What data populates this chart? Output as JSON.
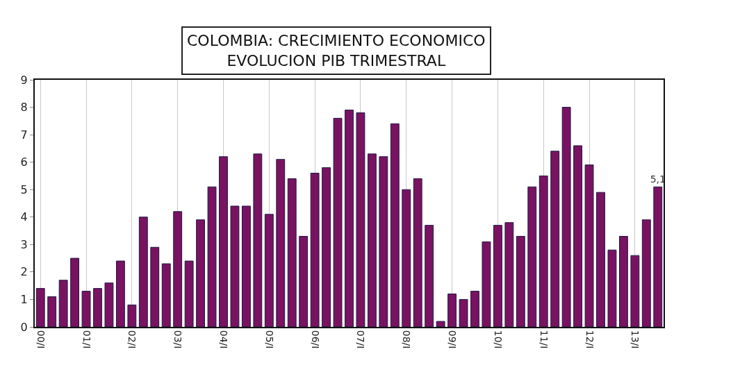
{
  "chart_data": {
    "type": "bar",
    "title": "COLOMBIA: CRECIMIENTO ECONOMICO\nEVOLUCION PIB TRIMESTRAL",
    "categories": [
      "00/I",
      null,
      null,
      null,
      "01/I",
      null,
      null,
      null,
      "02/I",
      null,
      null,
      null,
      "03/I",
      null,
      null,
      null,
      "04/I",
      null,
      null,
      null,
      "05/I",
      null,
      null,
      null,
      "06/I",
      null,
      null,
      null,
      "07/I",
      null,
      null,
      null,
      "08/I",
      null,
      null,
      null,
      "09/I",
      null,
      null,
      null,
      "10/I",
      null,
      null,
      null,
      "11/I",
      null,
      null,
      null,
      "12/I",
      null,
      null,
      null,
      "13/I",
      null,
      null
    ],
    "values": [
      1.4,
      1.1,
      1.7,
      2.5,
      1.3,
      1.4,
      1.6,
      2.4,
      0.8,
      4.0,
      2.9,
      2.3,
      4.2,
      2.4,
      3.9,
      5.1,
      6.2,
      4.4,
      4.4,
      6.3,
      4.1,
      6.1,
      5.4,
      3.3,
      5.6,
      5.8,
      7.6,
      7.9,
      7.8,
      6.3,
      6.2,
      7.4,
      5.0,
      5.4,
      3.7,
      0.2,
      1.2,
      1.0,
      1.3,
      3.1,
      3.7,
      3.8,
      3.3,
      5.1,
      5.5,
      6.4,
      8.0,
      6.6,
      5.9,
      4.9,
      2.8,
      3.3,
      2.6,
      3.9,
      5.1
    ],
    "value_labels": [
      null,
      null,
      null,
      null,
      null,
      null,
      null,
      null,
      null,
      null,
      null,
      null,
      null,
      null,
      null,
      null,
      null,
      null,
      null,
      null,
      null,
      null,
      null,
      null,
      null,
      null,
      null,
      null,
      null,
      null,
      null,
      null,
      null,
      null,
      null,
      null,
      null,
      null,
      null,
      null,
      null,
      null,
      null,
      null,
      null,
      null,
      null,
      null,
      null,
      null,
      null,
      null,
      null,
      null,
      "5,1"
    ],
    "color": "#7a1262",
    "ylim": [
      0,
      9
    ],
    "yticks": [
      0,
      1,
      2,
      3,
      4,
      5,
      6,
      7,
      8,
      9
    ],
    "grid": "x",
    "legend": false
  }
}
